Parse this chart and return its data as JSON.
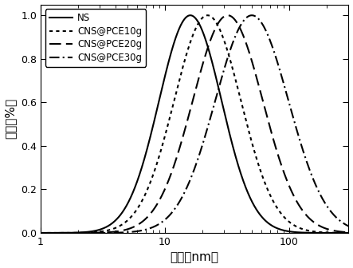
{
  "title": "",
  "xlabel": "直径（nm）",
  "ylabel": "强度（%）",
  "xlim": [
    1,
    300
  ],
  "ylim": [
    0,
    1.05
  ],
  "yticks": [
    0.0,
    0.2,
    0.4,
    0.6,
    0.8,
    1.0
  ],
  "series": [
    {
      "label": "NS",
      "linestyle": "solid",
      "color": "#000000",
      "peak": 16,
      "sigma": 0.58,
      "linewidth": 1.5
    },
    {
      "label": "CNS@PCE10g",
      "linestyle": "dotted",
      "color": "#000000",
      "peak": 22,
      "sigma": 0.62,
      "linewidth": 1.5
    },
    {
      "label": "CNS@PCE20g",
      "linestyle": "dashed",
      "color": "#000000",
      "peak": 32,
      "sigma": 0.65,
      "linewidth": 1.5
    },
    {
      "label": "CNS@PCE30g",
      "linestyle": "dashdot",
      "color": "#000000",
      "peak": 50,
      "sigma": 0.68,
      "linewidth": 1.5
    }
  ],
  "legend_loc": "upper left",
  "background_color": "#ffffff"
}
